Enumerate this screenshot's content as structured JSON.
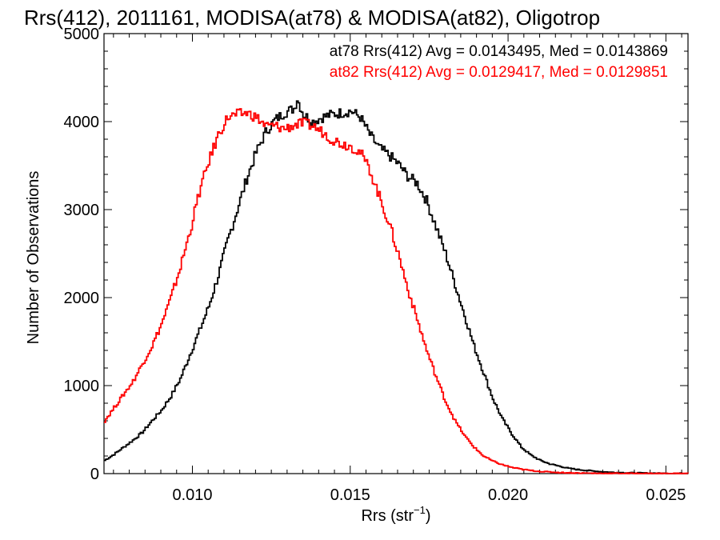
{
  "chart_data": {
    "type": "line",
    "title": "Rrs(412), 2011161, MODISA(at78) & MODISA(at82), Oligotrop",
    "xlabel": "Rrs (str",
    "xlabel_sup": "−1",
    "xlabel_close": ")",
    "ylabel": "Number of Observations",
    "xlim": [
      0.0072,
      0.0257
    ],
    "ylim": [
      0,
      5000
    ],
    "xticks": [
      {
        "value": 0.01,
        "label": "0.010"
      },
      {
        "value": 0.015,
        "label": "0.015"
      },
      {
        "value": 0.02,
        "label": "0.020"
      },
      {
        "value": 0.025,
        "label": "0.025"
      }
    ],
    "yticks": [
      {
        "value": 0,
        "label": "0"
      },
      {
        "value": 1000,
        "label": "1000"
      },
      {
        "value": 2000,
        "label": "2000"
      },
      {
        "value": 3000,
        "label": "3000"
      },
      {
        "value": 4000,
        "label": "4000"
      },
      {
        "value": 5000,
        "label": "5000"
      }
    ],
    "grid": false,
    "series": [
      {
        "name": "at78",
        "color": "#000000",
        "stat_text": "at78 Rrs(412) Avg = 0.0143495, Med = 0.0143869",
        "x": [
          0.0072,
          0.0075,
          0.0078,
          0.0081,
          0.0084,
          0.0087,
          0.009,
          0.0093,
          0.0096,
          0.0099,
          0.0102,
          0.0105,
          0.0108,
          0.0111,
          0.0114,
          0.0117,
          0.012,
          0.0123,
          0.0126,
          0.0129,
          0.0132,
          0.0133,
          0.0135,
          0.0138,
          0.0141,
          0.0144,
          0.0147,
          0.015,
          0.0153,
          0.0156,
          0.0159,
          0.0162,
          0.0165,
          0.0168,
          0.0171,
          0.0174,
          0.0177,
          0.018,
          0.0183,
          0.0186,
          0.0189,
          0.0192,
          0.0195,
          0.0198,
          0.0201,
          0.0204,
          0.0207,
          0.021,
          0.0213,
          0.0216,
          0.0219,
          0.0222,
          0.0225,
          0.023,
          0.0235,
          0.024,
          0.0245,
          0.025,
          0.0257
        ],
        "y": [
          150,
          220,
          300,
          380,
          470,
          600,
          720,
          880,
          1080,
          1350,
          1620,
          1900,
          2250,
          2650,
          3000,
          3350,
          3650,
          3880,
          4020,
          4100,
          4150,
          4260,
          4080,
          4000,
          4050,
          4080,
          4100,
          4120,
          4050,
          3850,
          3700,
          3620,
          3520,
          3380,
          3300,
          3100,
          2800,
          2500,
          2150,
          1800,
          1450,
          1150,
          850,
          620,
          450,
          300,
          210,
          150,
          110,
          85,
          60,
          45,
          35,
          20,
          12,
          8,
          5,
          3,
          2
        ]
      },
      {
        "name": "at82",
        "color": "#ff0000",
        "stat_text": "at82 Rrs(412) Avg = 0.0129417, Med = 0.0129851",
        "x": [
          0.0072,
          0.0075,
          0.0078,
          0.0081,
          0.0084,
          0.0087,
          0.009,
          0.0093,
          0.0096,
          0.0099,
          0.0102,
          0.0105,
          0.0108,
          0.0111,
          0.0114,
          0.0117,
          0.012,
          0.0123,
          0.0126,
          0.0129,
          0.0132,
          0.0135,
          0.0138,
          0.0141,
          0.0144,
          0.0147,
          0.015,
          0.0153,
          0.0156,
          0.0159,
          0.0162,
          0.0165,
          0.0168,
          0.0171,
          0.0174,
          0.0177,
          0.018,
          0.0183,
          0.0186,
          0.0189,
          0.0192,
          0.0195,
          0.0198,
          0.0201,
          0.0204,
          0.0207,
          0.021,
          0.0213,
          0.0216,
          0.022,
          0.0225,
          0.023,
          0.024,
          0.025,
          0.0257
        ],
        "y": [
          600,
          750,
          900,
          1050,
          1250,
          1450,
          1700,
          2000,
          2350,
          2750,
          3200,
          3550,
          3850,
          4050,
          4080,
          4100,
          4050,
          3950,
          3950,
          3920,
          3960,
          3980,
          3950,
          3880,
          3800,
          3750,
          3720,
          3650,
          3450,
          3150,
          2850,
          2500,
          2100,
          1750,
          1400,
          1100,
          820,
          600,
          430,
          300,
          200,
          140,
          100,
          70,
          50,
          35,
          25,
          18,
          12,
          8,
          5,
          3,
          2,
          1,
          1
        ]
      }
    ]
  }
}
